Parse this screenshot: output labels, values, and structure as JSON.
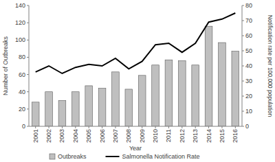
{
  "chart_data": {
    "type": "bar",
    "categories": [
      "2001",
      "2002",
      "2003",
      "2004",
      "2005",
      "2006",
      "2007",
      "2008",
      "2009",
      "2010",
      "2011",
      "2012",
      "2013",
      "2014",
      "2015",
      "2016"
    ],
    "series": [
      {
        "name": "Outbreaks",
        "type": "bar",
        "color": "#bfbfbf",
        "values": [
          28,
          40,
          30,
          40,
          47,
          44,
          63,
          43,
          59,
          71,
          77,
          76,
          71,
          116,
          97,
          87
        ]
      },
      {
        "name": "Salmonella Notification Rate",
        "type": "line",
        "color": "#000000",
        "axis": "y2",
        "values": [
          36,
          40,
          35,
          39,
          41,
          40,
          45,
          38,
          43,
          54,
          55,
          49,
          55,
          69,
          71,
          75
        ]
      }
    ],
    "x_label": "Year",
    "y_label": "Number of Outbreaks",
    "y2_label": "Notification rate per 100,000 population",
    "ylim": [
      0,
      140
    ],
    "yticks": [
      0,
      20,
      40,
      60,
      80,
      100,
      120,
      140
    ],
    "y2lim": [
      0,
      80
    ],
    "y2ticks": [
      0,
      10,
      20,
      30,
      40,
      50,
      60,
      70,
      80
    ],
    "grid": false,
    "legend": "bottom"
  }
}
